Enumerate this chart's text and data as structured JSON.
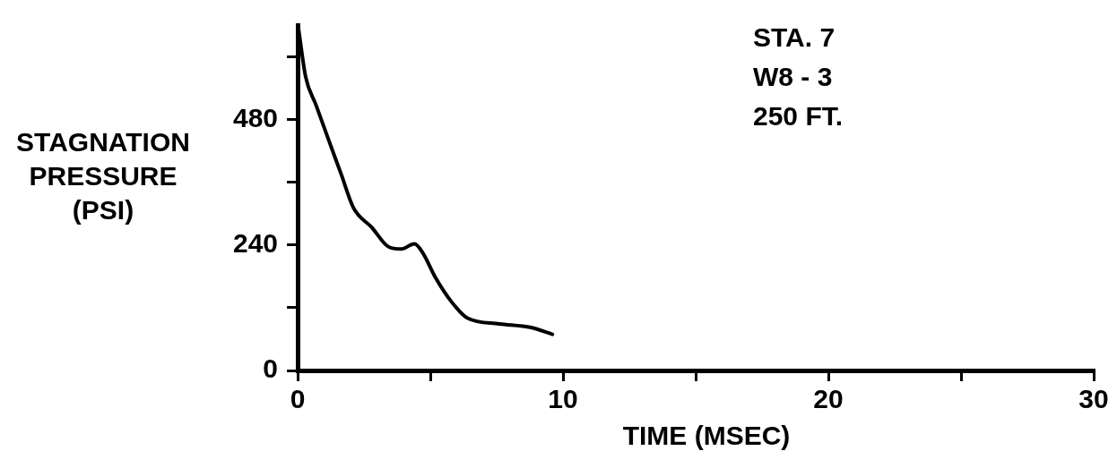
{
  "chart_data": {
    "type": "line",
    "xlabel": "TIME (MSEC)",
    "ylabel": "STAGNATION PRESSURE (PSI)",
    "annotations": [
      "STA. 7",
      "W8 - 3",
      "250 FT."
    ],
    "x": [
      0.04,
      0.3,
      0.7,
      1.17,
      1.64,
      2.1,
      2.8,
      3.4,
      3.9,
      4.4,
      4.7,
      5.2,
      5.8,
      6.4,
      7.6,
      8.8,
      9.6
    ],
    "series": [
      {
        "color": "#000000",
        "values": [
          650,
          561,
          506,
          440,
          375,
          311,
          273,
          237,
          232,
          242,
          226,
          177,
          131,
          100,
          89,
          82,
          69
        ]
      }
    ],
    "xlim": [
      0,
      30
    ],
    "xticks": [
      0,
      {
        "value": 5,
        "label": null
      },
      10,
      {
        "value": 15,
        "label": null
      },
      20,
      {
        "value": 25,
        "label": null
      },
      30
    ],
    "ylim": [
      0,
      660
    ],
    "yticks": [
      0,
      {
        "value": 120,
        "label": null
      },
      240,
      {
        "value": 360,
        "label": null
      },
      480,
      {
        "value": 600,
        "label": null
      }
    ],
    "marker": "none",
    "line_style": "solid",
    "legend": false,
    "grid": false
  }
}
